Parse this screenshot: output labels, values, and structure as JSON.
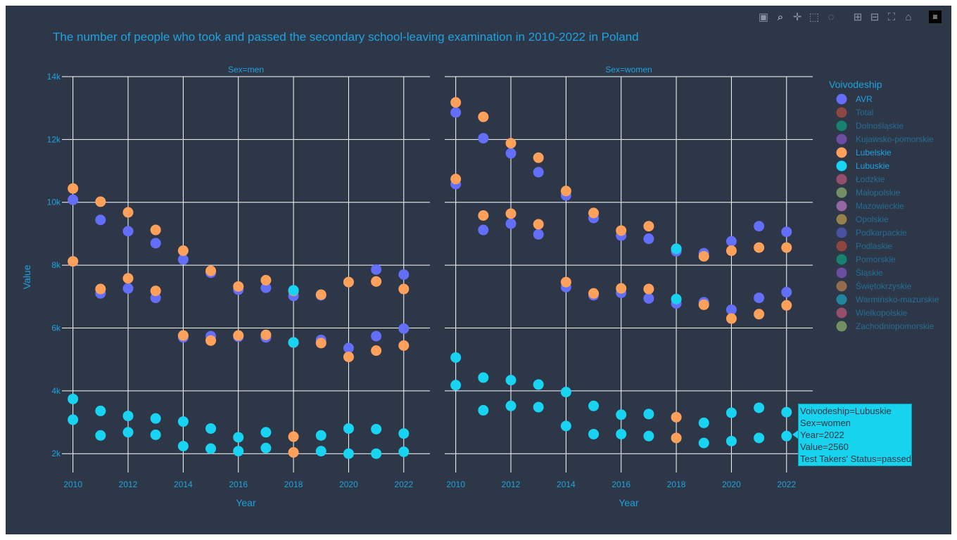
{
  "modebar": {
    "buttons": [
      {
        "name": "camera-icon",
        "glyph": "▣"
      },
      {
        "name": "zoom-icon",
        "glyph": "⌕"
      },
      {
        "name": "pan-icon",
        "glyph": "✛"
      },
      {
        "name": "box-select-icon",
        "glyph": "⬚"
      },
      {
        "name": "lasso-select-icon",
        "glyph": "◌"
      },
      {
        "name": "zoom-in-icon",
        "glyph": "⊞"
      },
      {
        "name": "zoom-out-icon",
        "glyph": "⊟"
      },
      {
        "name": "autoscale-icon",
        "glyph": "⛶"
      },
      {
        "name": "reset-axes-icon",
        "glyph": "⌂"
      },
      {
        "name": "plotly-logo-icon",
        "glyph": "≡"
      }
    ]
  },
  "tooltip": {
    "lines": [
      "Voivodeship=Lubuskie",
      "Sex=women",
      "Year=2022",
      "Value=2560",
      "Test Takers' Status=passed"
    ]
  },
  "chart_data": {
    "type": "scatter",
    "title": "The number of people who took and passed the secondary school-leaving examination in 2010-2022 in Poland",
    "ylabel": "Value",
    "xlabel": "Year",
    "ylim": [
      1400,
      14000
    ],
    "xlim": [
      2009.6,
      2022.95
    ],
    "x_ticks": [
      "2010",
      "2012",
      "2014",
      "2016",
      "2018",
      "2020",
      "2022"
    ],
    "y_ticks": [
      {
        "v": 2000,
        "label": "2k"
      },
      {
        "v": 4000,
        "label": "4k"
      },
      {
        "v": 6000,
        "label": "6k"
      },
      {
        "v": 8000,
        "label": "8k"
      },
      {
        "v": 10000,
        "label": "10k"
      },
      {
        "v": 12000,
        "label": "12k"
      },
      {
        "v": 14000,
        "label": "14k"
      }
    ],
    "grid": true,
    "legend": {
      "title": "Voivodeship",
      "placement": "right",
      "entries": [
        {
          "name": "AVR",
          "color": "#636efa",
          "active": true
        },
        {
          "name": "Total",
          "color": "#ef553b",
          "active": false
        },
        {
          "name": "Dolnośląskie",
          "color": "#00cc96",
          "active": false
        },
        {
          "name": "Kujawsko-pomorskie",
          "color": "#ab63fa",
          "active": false
        },
        {
          "name": "Lubelskie",
          "color": "#ffa15a",
          "active": true
        },
        {
          "name": "Lubuskie",
          "color": "#19d3f3",
          "active": true
        },
        {
          "name": "Łodzkie",
          "color": "#ff6692",
          "active": false
        },
        {
          "name": "Małopolskie",
          "color": "#b6e880",
          "active": false
        },
        {
          "name": "Mazowieckie",
          "color": "#ff97ff",
          "active": false
        },
        {
          "name": "Opolskie",
          "color": "#fecb52",
          "active": false
        },
        {
          "name": "Podkarpackie",
          "color": "#636efa",
          "active": false
        },
        {
          "name": "Podlaskie",
          "color": "#ef553b",
          "active": false
        },
        {
          "name": "Pomorskie",
          "color": "#00cc96",
          "active": false
        },
        {
          "name": "Śląskie",
          "color": "#ab63fa",
          "active": false
        },
        {
          "name": "Świętokrzyskie",
          "color": "#ffa15a",
          "active": false
        },
        {
          "name": "Warmińsko-mazurskie",
          "color": "#19d3f3",
          "active": false
        },
        {
          "name": "Wielkopolskie",
          "color": "#ff6692",
          "active": false
        },
        {
          "name": "Zachodniopomorskie",
          "color": "#b6e880",
          "active": false
        }
      ]
    },
    "panels": [
      {
        "title": "Sex=men",
        "series": [
          {
            "name": "AVR",
            "x": [
              2010,
              2011,
              2012,
              2013,
              2014,
              2015,
              2016,
              2017,
              2018,
              2019,
              2020,
              2021,
              2022
            ],
            "y": [
              10080,
              9440,
              9080,
              8700,
              8180,
              7760,
              7220,
              7280,
              7020,
              7040,
              7460,
              7860,
              7700
            ]
          },
          {
            "name": "AVR",
            "x": [
              2010,
              2011,
              2012,
              2013,
              2014,
              2015,
              2016,
              2017,
              2018,
              2019,
              2020,
              2021,
              2022
            ],
            "y": [
              8120,
              7100,
              7260,
              6960,
              5700,
              5740,
              5720,
              5700,
              5540,
              5620,
              5360,
              5740,
              5980
            ]
          },
          {
            "name": "Lubelskie",
            "x": [
              2010,
              2011,
              2012,
              2013,
              2014,
              2015,
              2016,
              2017,
              2018,
              2019,
              2020,
              2021,
              2022
            ],
            "y": [
              10440,
              10020,
              9680,
              9120,
              8460,
              7820,
              7320,
              7520,
              7180,
              7060,
              7460,
              7480,
              7240
            ]
          },
          {
            "name": "Lubelskie",
            "x": [
              2010,
              2011,
              2012,
              2013,
              2014,
              2015,
              2016,
              2017,
              2018,
              2019,
              2020,
              2021,
              2022
            ],
            "y": [
              8120,
              7240,
              7580,
              7180,
              5760,
              5600,
              5760,
              5780,
              5540,
              5520,
              5080,
              5280,
              5440
            ]
          },
          {
            "name": "Lubuskie",
            "x": [
              2010,
              2011,
              2012,
              2013,
              2014,
              2015,
              2016,
              2017,
              2018,
              2019,
              2020,
              2021,
              2022
            ],
            "y": [
              3740,
              3360,
              3200,
              3120,
              3020,
              2800,
              2520,
              2680,
              7200,
              2580,
              2800,
              2780,
              2640
            ]
          },
          {
            "name": "Lubuskie",
            "x": [
              2010,
              2011,
              2012,
              2013,
              2014,
              2015,
              2016,
              2017,
              2018,
              2019,
              2020,
              2021,
              2022
            ],
            "y": [
              3080,
              2580,
              2680,
              2600,
              2240,
              2160,
              2080,
              2180,
              5540,
              2080,
              2000,
              2000,
              2060
            ]
          },
          {
            "name": "Lubelskie",
            "x": [
              2018,
              2018
            ],
            "y": [
              2540,
              2040
            ]
          }
        ]
      },
      {
        "title": "Sex=women",
        "series": [
          {
            "name": "AVR",
            "x": [
              2010,
              2011,
              2012,
              2013,
              2014,
              2015,
              2016,
              2017,
              2018,
              2019,
              2020,
              2021,
              2022
            ],
            "y": [
              12860,
              12040,
              11560,
              10960,
              10220,
              9500,
              8940,
              8840,
              8440,
              8380,
              8760,
              9240,
              9060
            ]
          },
          {
            "name": "AVR",
            "x": [
              2010,
              2011,
              2012,
              2013,
              2014,
              2015,
              2016,
              2017,
              2018,
              2019,
              2020,
              2021,
              2022
            ],
            "y": [
              10580,
              9120,
              9320,
              8980,
              7300,
              7040,
              7120,
              6940,
              6780,
              6820,
              6580,
              6960,
              7140
            ]
          },
          {
            "name": "Lubelskie",
            "x": [
              2010,
              2011,
              2012,
              2013,
              2014,
              2015,
              2016,
              2017,
              2018,
              2019,
              2020,
              2021,
              2022
            ],
            "y": [
              13180,
              12720,
              11880,
              11420,
              10360,
              9660,
              9100,
              9240,
              8520,
              8280,
              8460,
              8560,
              8560
            ]
          },
          {
            "name": "Lubelskie",
            "x": [
              2010,
              2011,
              2012,
              2013,
              2014,
              2015,
              2016,
              2017,
              2018,
              2019,
              2020,
              2021,
              2022
            ],
            "y": [
              10740,
              9580,
              9640,
              9300,
              7460,
              7100,
              7260,
              7240,
              3160,
              6740,
              6300,
              6440,
              6720
            ]
          },
          {
            "name": "Lubuskie",
            "x": [
              2010,
              2011,
              2012,
              2013,
              2014,
              2015,
              2016,
              2017,
              2018,
              2019,
              2020,
              2021,
              2022
            ],
            "y": [
              5060,
              4420,
              4340,
              4200,
              3960,
              3520,
              3240,
              3260,
              8520,
              2980,
              3300,
              3460,
              3320
            ]
          },
          {
            "name": "Lubuskie",
            "x": [
              2010,
              2011,
              2012,
              2013,
              2014,
              2015,
              2016,
              2017,
              2018,
              2019,
              2020,
              2021,
              2022
            ],
            "y": [
              4180,
              3380,
              3520,
              3480,
              2880,
              2620,
              2620,
              2560,
              6920,
              2340,
              2400,
              2500,
              2560
            ]
          },
          {
            "name": "Lubelskie",
            "x": [
              2018
            ],
            "y": [
              2500
            ]
          }
        ]
      }
    ]
  }
}
